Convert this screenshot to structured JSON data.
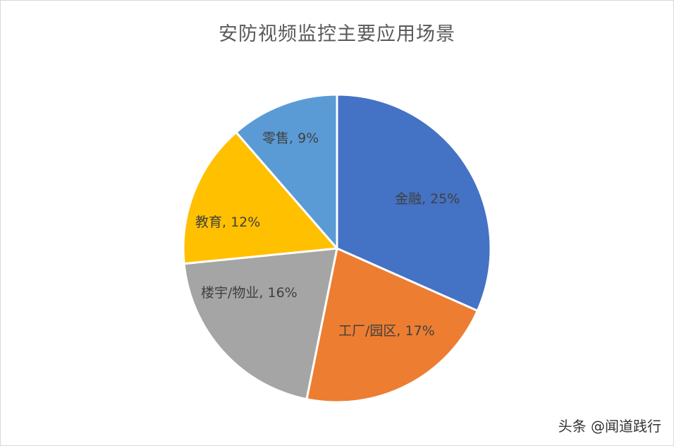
{
  "chart_data": {
    "type": "pie",
    "title": "安防视频监控主要应用场景",
    "categories": [
      "金融",
      "工厂/园区",
      "楼宇/物业",
      "教育",
      "零售"
    ],
    "values": [
      25,
      17,
      16,
      12,
      9
    ],
    "unit": "%",
    "colors": [
      "#4472c4",
      "#ed7d31",
      "#a5a5a5",
      "#ffc000",
      "#5b9bd5"
    ],
    "data_labels": [
      "金融, 25%",
      "工厂/园区, 17%",
      "楼宇/物业, 16%",
      "教育, 12%",
      "零售, 9%"
    ],
    "start_angle_deg": 0,
    "direction": "clockwise",
    "legend": "none"
  },
  "labels": {
    "finance": "金融, 25%",
    "factory": "工厂/园区, 17%",
    "building": "楼宇/物业, 16%",
    "education": "教育, 12%",
    "retail": "零售, 9%"
  },
  "watermark": "头条 @闻道践行"
}
